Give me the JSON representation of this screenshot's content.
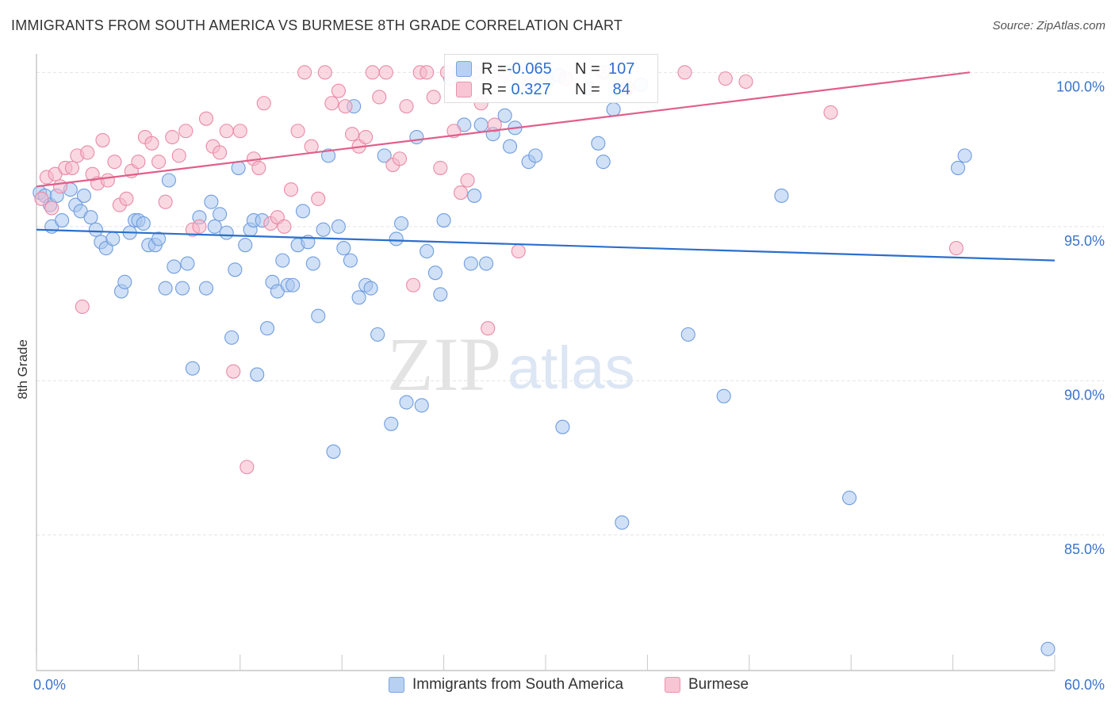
{
  "title": "IMMIGRANTS FROM SOUTH AMERICA VS BURMESE 8TH GRADE CORRELATION CHART",
  "source": "Source: ZipAtlas.com",
  "watermark": {
    "zip": "ZIP",
    "atlas": "atlas"
  },
  "stats": [
    {
      "r_label": "R =",
      "r_value": "-0.065",
      "n_label": "N =",
      "n_value": "107"
    },
    {
      "r_label": "R =",
      "r_value": " 0.327",
      "n_label": "N =",
      "n_value": " 84"
    }
  ],
  "legend": [
    "Immigrants from South America",
    "Burmese"
  ],
  "colors": {
    "blue_fill": "#a9c6ee",
    "blue_stroke": "#6f9ddf",
    "blue_line": "#2a6fce",
    "pink_fill": "#f5b8cb",
    "pink_stroke": "#e98aa7",
    "pink_line": "#e05f8a",
    "axis_text": "#3a74cc",
    "grid": "#e3e3e3"
  },
  "chart_data": {
    "type": "scatter",
    "title": "IMMIGRANTS FROM SOUTH AMERICA VS BURMESE 8TH GRADE CORRELATION CHART",
    "xlabel": "",
    "ylabel": "8th Grade",
    "xlim": [
      0,
      60
    ],
    "ylim": [
      80.6,
      100.6
    ],
    "x_tick_labels": [
      "0.0%",
      "60.0%"
    ],
    "y_ticks": [
      85,
      90,
      95,
      100
    ],
    "y_tick_labels": [
      "85.0%",
      "90.0%",
      "95.0%",
      "100.0%"
    ],
    "grid": true,
    "legend_position": "bottom",
    "series": [
      {
        "name": "Immigrants from South America",
        "trend": {
          "x": [
            0,
            60
          ],
          "y": [
            94.9,
            93.9
          ]
        },
        "points": [
          [
            0.2,
            96.1
          ],
          [
            0.5,
            96.0
          ],
          [
            0.8,
            95.7
          ],
          [
            0.9,
            95.0
          ],
          [
            1.2,
            96.0
          ],
          [
            1.5,
            95.2
          ],
          [
            2.0,
            96.2
          ],
          [
            2.3,
            95.7
          ],
          [
            2.6,
            95.5
          ],
          [
            2.8,
            96.0
          ],
          [
            3.2,
            95.3
          ],
          [
            3.5,
            94.9
          ],
          [
            3.8,
            94.5
          ],
          [
            4.1,
            94.3
          ],
          [
            4.5,
            94.6
          ],
          [
            5.0,
            92.9
          ],
          [
            5.2,
            93.2
          ],
          [
            5.5,
            94.8
          ],
          [
            5.8,
            95.2
          ],
          [
            6.0,
            95.2
          ],
          [
            6.3,
            95.1
          ],
          [
            6.6,
            94.4
          ],
          [
            7.0,
            94.4
          ],
          [
            7.2,
            94.6
          ],
          [
            7.6,
            93.0
          ],
          [
            7.8,
            96.5
          ],
          [
            8.1,
            93.7
          ],
          [
            8.6,
            93.0
          ],
          [
            8.9,
            93.8
          ],
          [
            9.2,
            90.4
          ],
          [
            9.6,
            95.3
          ],
          [
            10.0,
            93.0
          ],
          [
            10.3,
            95.8
          ],
          [
            10.5,
            95.0
          ],
          [
            10.8,
            95.4
          ],
          [
            11.2,
            94.8
          ],
          [
            11.5,
            91.4
          ],
          [
            11.7,
            93.6
          ],
          [
            11.9,
            96.9
          ],
          [
            12.3,
            94.4
          ],
          [
            12.6,
            94.9
          ],
          [
            12.8,
            95.2
          ],
          [
            13.0,
            90.2
          ],
          [
            13.3,
            95.2
          ],
          [
            13.6,
            91.7
          ],
          [
            13.9,
            93.2
          ],
          [
            14.2,
            92.9
          ],
          [
            14.5,
            93.9
          ],
          [
            14.8,
            93.1
          ],
          [
            15.1,
            93.1
          ],
          [
            15.4,
            94.4
          ],
          [
            15.7,
            95.5
          ],
          [
            16.0,
            94.5
          ],
          [
            16.3,
            93.8
          ],
          [
            16.6,
            92.1
          ],
          [
            16.9,
            94.9
          ],
          [
            17.2,
            97.3
          ],
          [
            17.5,
            87.7
          ],
          [
            17.8,
            95.0
          ],
          [
            18.1,
            94.3
          ],
          [
            18.5,
            93.9
          ],
          [
            18.7,
            98.9
          ],
          [
            19.0,
            92.7
          ],
          [
            19.4,
            93.1
          ],
          [
            19.7,
            93.0
          ],
          [
            20.1,
            91.5
          ],
          [
            20.5,
            97.3
          ],
          [
            20.9,
            88.6
          ],
          [
            21.2,
            94.6
          ],
          [
            21.5,
            95.1
          ],
          [
            21.8,
            89.3
          ],
          [
            22.4,
            97.9
          ],
          [
            22.7,
            89.2
          ],
          [
            23.0,
            94.2
          ],
          [
            23.5,
            93.5
          ],
          [
            23.8,
            92.8
          ],
          [
            24.0,
            95.2
          ],
          [
            24.4,
            99.8
          ],
          [
            24.9,
            100.0
          ],
          [
            25.2,
            98.3
          ],
          [
            25.6,
            93.8
          ],
          [
            25.8,
            96.0
          ],
          [
            26.2,
            98.3
          ],
          [
            26.5,
            93.8
          ],
          [
            26.9,
            98.0
          ],
          [
            27.6,
            98.6
          ],
          [
            27.9,
            97.6
          ],
          [
            28.2,
            98.2
          ],
          [
            29.0,
            97.1
          ],
          [
            29.4,
            97.3
          ],
          [
            30.1,
            99.7
          ],
          [
            30.8,
            99.9
          ],
          [
            31.0,
            88.5
          ],
          [
            32.5,
            99.5
          ],
          [
            33.1,
            97.7
          ],
          [
            33.4,
            97.1
          ],
          [
            34.0,
            98.8
          ],
          [
            34.5,
            85.4
          ],
          [
            35.6,
            99.6
          ],
          [
            38.4,
            91.5
          ],
          [
            40.5,
            89.5
          ],
          [
            43.9,
            96.0
          ],
          [
            47.9,
            86.2
          ],
          [
            54.3,
            96.9
          ],
          [
            54.7,
            97.3
          ],
          [
            59.6,
            81.3
          ]
        ]
      },
      {
        "name": "Burmese",
        "trend": {
          "x": [
            0,
            55
          ],
          "y": [
            96.3,
            100.0
          ]
        },
        "points": [
          [
            0.3,
            95.9
          ],
          [
            0.6,
            96.6
          ],
          [
            0.9,
            95.6
          ],
          [
            1.1,
            96.7
          ],
          [
            1.4,
            96.3
          ],
          [
            1.7,
            96.9
          ],
          [
            2.1,
            96.9
          ],
          [
            2.4,
            97.3
          ],
          [
            2.7,
            92.4
          ],
          [
            3.0,
            97.4
          ],
          [
            3.3,
            96.7
          ],
          [
            3.6,
            96.4
          ],
          [
            3.9,
            97.8
          ],
          [
            4.2,
            96.5
          ],
          [
            4.6,
            97.1
          ],
          [
            4.9,
            95.7
          ],
          [
            5.3,
            95.9
          ],
          [
            5.6,
            96.8
          ],
          [
            6.0,
            97.1
          ],
          [
            6.4,
            97.9
          ],
          [
            6.8,
            97.7
          ],
          [
            7.2,
            97.1
          ],
          [
            7.6,
            95.8
          ],
          [
            8.0,
            97.9
          ],
          [
            8.4,
            97.3
          ],
          [
            8.8,
            98.1
          ],
          [
            9.2,
            94.9
          ],
          [
            9.6,
            95.0
          ],
          [
            10.0,
            98.5
          ],
          [
            10.4,
            97.6
          ],
          [
            10.8,
            97.4
          ],
          [
            11.2,
            98.1
          ],
          [
            11.6,
            90.3
          ],
          [
            12.0,
            98.1
          ],
          [
            12.4,
            87.2
          ],
          [
            12.8,
            97.2
          ],
          [
            13.1,
            96.9
          ],
          [
            13.4,
            99.0
          ],
          [
            13.8,
            95.1
          ],
          [
            14.2,
            95.3
          ],
          [
            14.6,
            95.0
          ],
          [
            15.0,
            96.2
          ],
          [
            15.4,
            98.1
          ],
          [
            15.8,
            100.0
          ],
          [
            16.2,
            97.6
          ],
          [
            16.6,
            95.9
          ],
          [
            17.0,
            100.0
          ],
          [
            17.4,
            99.0
          ],
          [
            17.8,
            99.4
          ],
          [
            18.2,
            98.9
          ],
          [
            18.6,
            98.0
          ],
          [
            19.0,
            97.6
          ],
          [
            19.4,
            97.9
          ],
          [
            19.8,
            100.0
          ],
          [
            20.2,
            99.2
          ],
          [
            20.6,
            100.0
          ],
          [
            21.0,
            97.0
          ],
          [
            21.4,
            97.2
          ],
          [
            21.8,
            98.9
          ],
          [
            22.2,
            93.1
          ],
          [
            22.6,
            100.0
          ],
          [
            23.0,
            100.0
          ],
          [
            23.4,
            99.2
          ],
          [
            23.8,
            96.9
          ],
          [
            24.2,
            100.0
          ],
          [
            24.6,
            98.1
          ],
          [
            25.0,
            96.1
          ],
          [
            25.4,
            96.5
          ],
          [
            25.8,
            100.0
          ],
          [
            26.2,
            99.0
          ],
          [
            26.6,
            91.7
          ],
          [
            27.0,
            98.3
          ],
          [
            27.6,
            100.0
          ],
          [
            28.4,
            94.2
          ],
          [
            29.0,
            99.6
          ],
          [
            31.2,
            99.8
          ],
          [
            33.4,
            100.0
          ],
          [
            34.8,
            99.5
          ],
          [
            38.2,
            100.0
          ],
          [
            40.6,
            99.8
          ],
          [
            41.8,
            99.7
          ],
          [
            46.8,
            98.7
          ],
          [
            54.2,
            94.3
          ]
        ]
      }
    ]
  }
}
